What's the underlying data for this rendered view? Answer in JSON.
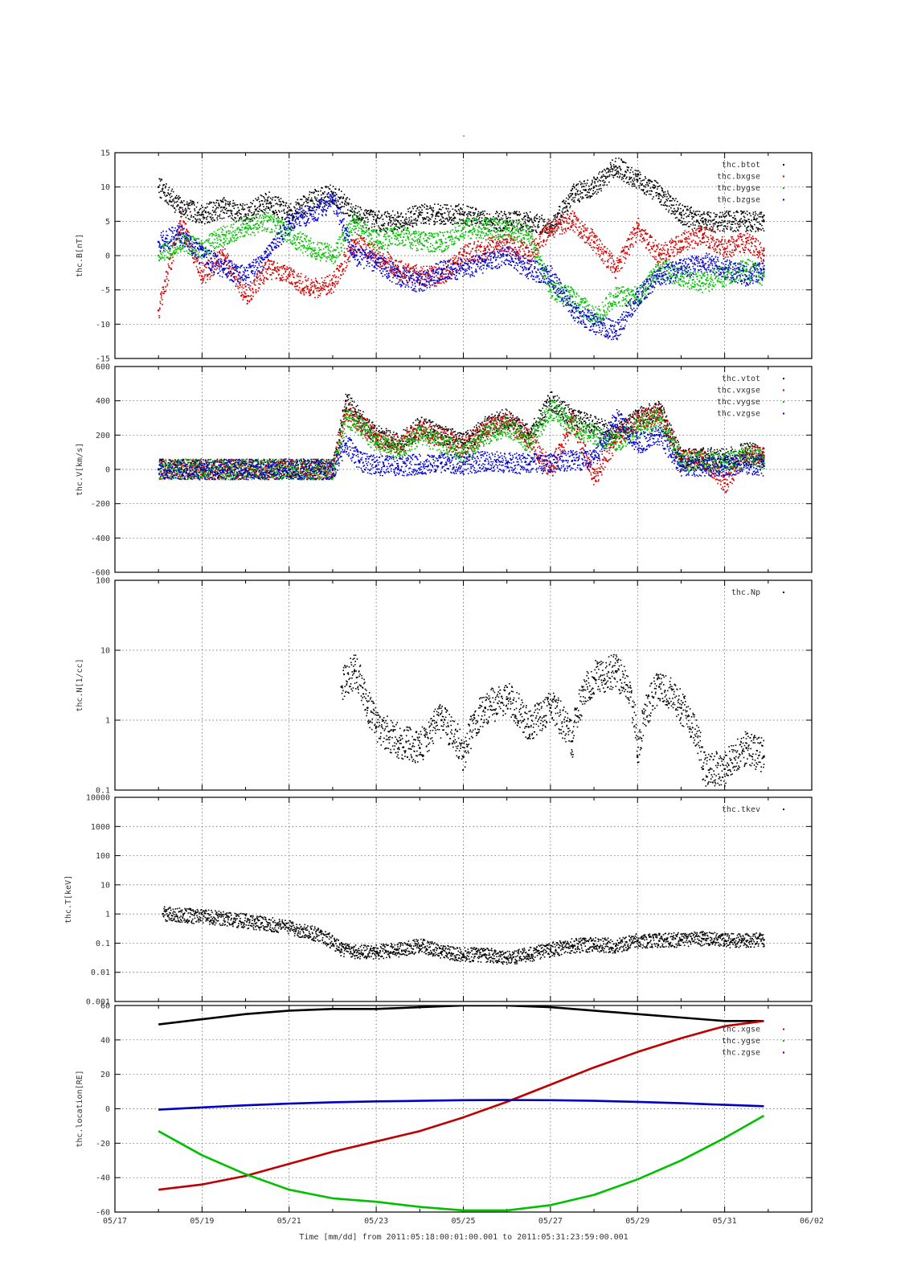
{
  "figure": {
    "title": "-",
    "xlabel": "Time [mm/dd]  from 2011:05:18:00:01:00.001  to  2011:05:31:23:59:00.001",
    "x_tick_labels": [
      "05/17",
      "05/19",
      "05/21",
      "05/23",
      "05/25",
      "05/27",
      "05/29",
      "05/31",
      "06/02"
    ]
  },
  "chart_data": [
    {
      "type": "scatter",
      "ylabel": "thc.B[nT]",
      "xlim": [
        "2011-05-17",
        "2011-06-02"
      ],
      "ylim": [
        -15,
        15
      ],
      "y_ticks": [
        -15,
        -10,
        -5,
        0,
        5,
        10,
        15
      ],
      "y_tick_labels": [
        "-15",
        "-10",
        "-5",
        "0",
        "5",
        "10",
        "15"
      ],
      "grid": true,
      "legend": "top-right",
      "series": [
        {
          "name": "thc.btot",
          "color": "#000000",
          "x": [
            "05/18",
            "05/18.5",
            "05/19",
            "05/19.5",
            "05/20",
            "05/20.5",
            "05/21",
            "05/21.5",
            "05/22",
            "05/22.5",
            "05/23",
            "05/23.5",
            "05/24",
            "05/24.5",
            "05/25",
            "05/25.5",
            "05/26",
            "05/26.5",
            "05/27",
            "05/27.5",
            "05/28",
            "05/28.5",
            "05/29",
            "05/29.5",
            "05/30",
            "05/30.5",
            "05/31",
            "05/31.5",
            "05/31.9"
          ],
          "y": [
            10,
            7,
            6,
            7,
            6,
            8,
            6,
            8,
            9,
            6,
            5,
            5,
            6,
            6,
            6,
            5,
            5,
            5,
            4,
            9,
            10,
            13,
            11,
            9,
            6,
            5,
            5,
            5,
            5
          ]
        },
        {
          "name": "thc.bxgse",
          "color": "#d40000",
          "x": [
            "05/18",
            "05/18.5",
            "05/19",
            "05/19.5",
            "05/20",
            "05/20.5",
            "05/21",
            "05/21.5",
            "05/22",
            "05/22.5",
            "05/23",
            "05/23.5",
            "05/24",
            "05/24.5",
            "05/25",
            "05/25.5",
            "05/26",
            "05/26.5",
            "05/27",
            "05/27.5",
            "05/28",
            "05/28.5",
            "05/29",
            "05/29.5",
            "05/30",
            "05/30.5",
            "05/31",
            "05/31.5",
            "05/31.9"
          ],
          "y": [
            -8,
            5,
            -3,
            0,
            -6,
            -2,
            -3,
            -5,
            -4,
            2,
            0,
            -2,
            -3,
            -3,
            0,
            1,
            2,
            0,
            4,
            5,
            2,
            -2,
            4,
            0,
            2,
            3,
            1,
            2,
            0
          ]
        },
        {
          "name": "thc.bygse",
          "color": "#00c000",
          "x": [
            "05/18",
            "05/18.5",
            "05/19",
            "05/19.5",
            "05/20",
            "05/20.5",
            "05/21",
            "05/21.5",
            "05/22",
            "05/22.5",
            "05/23",
            "05/23.5",
            "05/24",
            "05/24.5",
            "05/25",
            "05/25.5",
            "05/26",
            "05/26.5",
            "05/27",
            "05/27.5",
            "05/28",
            "05/28.5",
            "05/29",
            "05/29.5",
            "05/30",
            "05/30.5",
            "05/31",
            "05/31.5",
            "05/31.9"
          ],
          "y": [
            0,
            2,
            1,
            3,
            4,
            5,
            3,
            1,
            0,
            5,
            2,
            3,
            2,
            2,
            4,
            4,
            4,
            3,
            -5,
            -6,
            -9,
            -6,
            -6,
            -2,
            -3,
            -4,
            -3,
            -2,
            -3
          ]
        },
        {
          "name": "thc.bzgse",
          "color": "#0000d0",
          "x": [
            "05/18",
            "05/18.5",
            "05/19",
            "05/19.5",
            "05/20",
            "05/20.5",
            "05/21",
            "05/21.5",
            "05/22",
            "05/22.5",
            "05/23",
            "05/23.5",
            "05/24",
            "05/24.5",
            "05/25",
            "05/25.5",
            "05/26",
            "05/26.5",
            "05/27",
            "05/27.5",
            "05/28",
            "05/28.5",
            "05/29",
            "05/29.5",
            "05/30",
            "05/30.5",
            "05/31",
            "05/31.5",
            "05/31.9"
          ],
          "y": [
            2,
            3,
            0,
            -2,
            -3,
            0,
            5,
            6,
            8,
            0,
            -1,
            -3,
            -4,
            -2,
            -2,
            -1,
            0,
            -2,
            -3,
            -8,
            -10,
            -11,
            -6,
            -3,
            -2,
            -1,
            -2,
            -3,
            -2
          ]
        }
      ]
    },
    {
      "type": "scatter",
      "ylabel": "thc.V[km/s]",
      "xlim": [
        "2011-05-17",
        "2011-06-02"
      ],
      "ylim": [
        -600,
        600
      ],
      "y_ticks": [
        -600,
        -400,
        -200,
        0,
        200,
        400,
        600
      ],
      "y_tick_labels": [
        "-600",
        "-400",
        "-200",
        "0",
        "200",
        "400",
        "600"
      ],
      "grid": true,
      "legend": "top-right",
      "series": [
        {
          "name": "thc.vtot",
          "color": "#000000",
          "x": [
            "05/18",
            "05/19",
            "05/20",
            "05/21",
            "05/22",
            "05/22.3",
            "05/22.6",
            "05/23",
            "05/23.5",
            "05/24",
            "05/24.5",
            "05/25",
            "05/25.5",
            "05/26",
            "05/26.5",
            "05/27",
            "05/27.5",
            "05/28",
            "05/28.5",
            "05/29",
            "05/29.5",
            "05/30",
            "05/30.5",
            "05/31",
            "05/31.5",
            "05/31.9"
          ],
          "y": [
            0,
            0,
            0,
            0,
            0,
            400,
            300,
            200,
            150,
            250,
            200,
            150,
            250,
            300,
            200,
            400,
            300,
            250,
            200,
            300,
            350,
            60,
            70,
            60,
            100,
            80
          ]
        },
        {
          "name": "thc.vxgse",
          "color": "#d40000",
          "x": [
            "05/18",
            "05/19",
            "05/20",
            "05/21",
            "05/22",
            "05/22.3",
            "05/22.6",
            "05/23",
            "05/23.5",
            "05/24",
            "05/24.5",
            "05/25",
            "05/25.5",
            "05/26",
            "05/26.5",
            "05/27",
            "05/27.5",
            "05/28",
            "05/28.5",
            "05/29",
            "05/29.5",
            "05/30",
            "05/30.5",
            "05/31",
            "05/31.5",
            "05/31.9"
          ],
          "y": [
            0,
            0,
            0,
            0,
            0,
            350,
            280,
            180,
            140,
            230,
            180,
            130,
            230,
            280,
            180,
            0,
            280,
            -50,
            180,
            280,
            330,
            50,
            60,
            -80,
            90,
            70
          ]
        },
        {
          "name": "thc.vygse",
          "color": "#00c000",
          "x": [
            "05/18",
            "05/19",
            "05/20",
            "05/21",
            "05/22",
            "05/22.3",
            "05/22.6",
            "05/23",
            "05/23.5",
            "05/24",
            "05/24.5",
            "05/25",
            "05/25.5",
            "05/26",
            "05/26.5",
            "05/27",
            "05/27.5",
            "05/28",
            "05/28.5",
            "05/29",
            "05/29.5",
            "05/30",
            "05/30.5",
            "05/31",
            "05/31.5",
            "05/31.9"
          ],
          "y": [
            0,
            0,
            0,
            0,
            0,
            300,
            250,
            150,
            120,
            200,
            150,
            100,
            200,
            250,
            150,
            350,
            250,
            200,
            150,
            250,
            300,
            40,
            50,
            40,
            80,
            60
          ]
        },
        {
          "name": "thc.vzgse",
          "color": "#0000d0",
          "x": [
            "05/18",
            "05/19",
            "05/20",
            "05/21",
            "05/22",
            "05/22.3",
            "05/22.6",
            "05/23",
            "05/23.5",
            "05/24",
            "05/24.5",
            "05/25",
            "05/25.5",
            "05/26",
            "05/26.5",
            "05/27",
            "05/27.5",
            "05/28",
            "05/28.5",
            "05/29",
            "05/29.5",
            "05/30",
            "05/30.5",
            "05/31",
            "05/31.5",
            "05/31.9"
          ],
          "y": [
            0,
            0,
            0,
            0,
            0,
            150,
            50,
            20,
            20,
            30,
            40,
            30,
            50,
            40,
            30,
            40,
            50,
            60,
            300,
            150,
            200,
            20,
            20,
            20,
            30,
            20
          ]
        }
      ]
    },
    {
      "type": "scatter",
      "ylabel": "thc.N[1/cc]",
      "xlim": [
        "2011-05-17",
        "2011-06-02"
      ],
      "yscale": "log",
      "ylim": [
        0.1,
        100
      ],
      "y_ticks": [
        0.1,
        1,
        10,
        100
      ],
      "y_tick_labels": [
        "0.1",
        "1",
        "10",
        "100"
      ],
      "grid": true,
      "legend": "top-right",
      "series": [
        {
          "name": "thc.Np",
          "color": "#000000",
          "x": [
            "05/22.2",
            "05/22.5",
            "05/22.8",
            "05/23",
            "05/23.5",
            "05/24",
            "05/24.5",
            "05/25",
            "05/25.5",
            "05/26",
            "05/26.5",
            "05/27",
            "05/27.5",
            "05/28",
            "05/28.5",
            "05/29",
            "05/29.5",
            "05/30",
            "05/30.5",
            "05/31",
            "05/31.5",
            "05/31.9"
          ],
          "y": [
            3,
            5,
            1.5,
            0.8,
            0.5,
            0.4,
            1,
            0.3,
            1.5,
            2,
            0.8,
            1.5,
            0.5,
            4,
            5,
            0.3,
            3,
            1.5,
            0.2,
            0.2,
            0.4,
            0.3
          ]
        }
      ]
    },
    {
      "type": "scatter",
      "ylabel": "thc.T[keV]",
      "xlim": [
        "2011-05-17",
        "2011-06-02"
      ],
      "yscale": "log",
      "ylim": [
        0.001,
        10000
      ],
      "y_ticks": [
        0.001,
        0.01,
        0.1,
        1,
        10,
        100,
        1000,
        10000
      ],
      "y_tick_labels": [
        "0.001",
        "0.01",
        "0.1",
        "1",
        "10",
        "100",
        "1000",
        "10000"
      ],
      "grid": true,
      "legend": "top-right",
      "series": [
        {
          "name": "thc.tkev",
          "color": "#000000",
          "x": [
            "05/18.1",
            "05/22.2",
            "05/22.5",
            "05/23",
            "05/23.5",
            "05/24",
            "05/24.5",
            "05/25",
            "05/25.5",
            "05/26",
            "05/26.5",
            "05/27",
            "05/27.5",
            "05/28",
            "05/28.5",
            "05/29",
            "05/29.5",
            "05/30",
            "05/30.5",
            "05/31",
            "05/31.5",
            "05/31.9"
          ],
          "y": [
            1,
            0.06,
            0.05,
            0.05,
            0.06,
            0.08,
            0.05,
            0.04,
            0.04,
            0.03,
            0.04,
            0.06,
            0.08,
            0.09,
            0.08,
            0.12,
            0.12,
            0.13,
            0.14,
            0.12,
            0.12,
            0.13
          ]
        }
      ]
    },
    {
      "type": "line",
      "ylabel": "thc.location[RE]",
      "xlim": [
        "2011-05-17",
        "2011-06-02"
      ],
      "ylim": [
        -60,
        60
      ],
      "y_ticks": [
        -60,
        -40,
        -20,
        0,
        20,
        40,
        60
      ],
      "y_tick_labels": [
        "-60",
        "-40",
        "-20",
        "0",
        "20",
        "40",
        "60"
      ],
      "grid": true,
      "legend": "top-right",
      "series": [
        {
          "name": "",
          "color": "#000000",
          "x": [
            "05/18",
            "05/19",
            "05/20",
            "05/21",
            "05/22",
            "05/23",
            "05/24",
            "05/25",
            "05/26",
            "05/27",
            "05/28",
            "05/29",
            "05/30",
            "05/31",
            "05/31.9"
          ],
          "y": [
            49,
            52,
            55,
            57,
            58,
            58,
            59,
            60,
            60,
            59,
            57,
            55,
            53,
            51,
            51
          ]
        },
        {
          "name": "thc.xgse",
          "color": "#c00000",
          "x": [
            "05/18",
            "05/19",
            "05/20",
            "05/21",
            "05/22",
            "05/23",
            "05/24",
            "05/25",
            "05/26",
            "05/27",
            "05/28",
            "05/29",
            "05/30",
            "05/31",
            "05/31.9"
          ],
          "y": [
            -47,
            -44,
            -39,
            -32,
            -25,
            -19,
            -13,
            -5,
            4,
            14,
            24,
            33,
            41,
            48,
            51
          ]
        },
        {
          "name": "thc.ygse",
          "color": "#00c000",
          "x": [
            "05/18",
            "05/19",
            "05/20",
            "05/21",
            "05/22",
            "05/23",
            "05/24",
            "05/25",
            "05/26",
            "05/27",
            "05/28",
            "05/29",
            "05/30",
            "05/31",
            "05/31.9"
          ],
          "y": [
            -13,
            -27,
            -38,
            -47,
            -52,
            -54,
            -57,
            -59,
            -59,
            -56,
            -50,
            -41,
            -30,
            -17,
            -4
          ]
        },
        {
          "name": "thc.zgse",
          "color": "#0000c0",
          "x": [
            "05/18",
            "05/19",
            "05/20",
            "05/21",
            "05/22",
            "05/23",
            "05/24",
            "05/25",
            "05/26",
            "05/27",
            "05/28",
            "05/29",
            "05/30",
            "05/31",
            "05/31.9"
          ],
          "y": [
            -0.5,
            0.8,
            2,
            3,
            3.8,
            4.3,
            4.6,
            5,
            5.1,
            5,
            4.6,
            4,
            3.2,
            2.3,
            1.5
          ]
        }
      ]
    }
  ]
}
